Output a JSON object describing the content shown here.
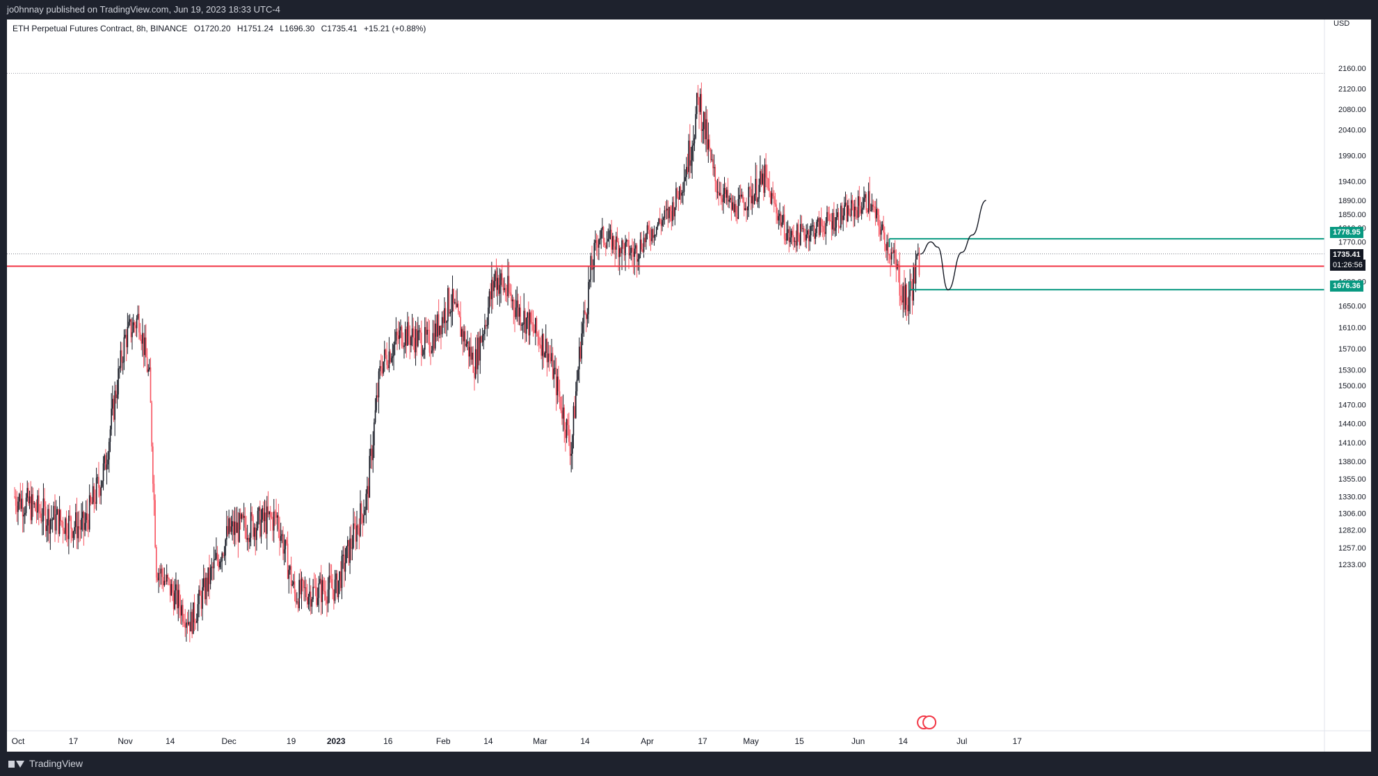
{
  "header": {
    "published": "jo0hnnay published on TradingView.com, Jun 19, 2023 18:33 UTC-4"
  },
  "symbol": {
    "name": "ETH Perpetual Futures Contract, 8h, BINANCE",
    "open": "O1720.20",
    "high": "H1751.24",
    "low": "L1696.30",
    "close": "C1735.41",
    "change": "+15.21 (+0.88%)"
  },
  "axis": {
    "currency": "USD",
    "price_ticks": [
      "2160.00",
      "2120.00",
      "2080.00",
      "2040.00",
      "1990.00",
      "1940.00",
      "1890.00",
      "1850.00",
      "1810.00",
      "1770.00",
      "1690.00",
      "1650.00",
      "1610.00",
      "1570.00",
      "1530.00",
      "1500.00",
      "1470.00",
      "1440.00",
      "1410.00",
      "1380.00",
      "1355.00",
      "1330.00",
      "1306.00",
      "1282.00",
      "1257.00",
      "1233.00"
    ],
    "time_ticks": [
      "Oct",
      "17",
      "Nov",
      "14",
      "Dec",
      "19",
      "2023",
      "16",
      "Feb",
      "14",
      "Mar",
      "14",
      "Apr",
      "17",
      "May",
      "15",
      "Jun",
      "14",
      "Jul",
      "17"
    ]
  },
  "labels": {
    "box_top": "1778.95",
    "current_price": "1735.41",
    "countdown": "01:26:56",
    "box_bottom": "1676.36"
  },
  "footer": {
    "brand": "TradingView"
  },
  "colors": {
    "up": "#131722",
    "down": "#f7525f",
    "red_line": "#f23645",
    "box": "#089981",
    "current": "#131722"
  },
  "chart_data": {
    "type": "candlestick",
    "symbol": "ETH Perpetual Futures Contract, 8h, BINANCE",
    "timeframe": "8h",
    "key_levels": {
      "horizontal_support": 1715,
      "box_top": 1778.95,
      "box_bottom": 1676.36,
      "current": 1735.41,
      "dotted_high": 2150
    },
    "anchors": [
      {
        "date": "Sep 30",
        "price": 1330
      },
      {
        "date": "Oct 10",
        "price": 1300
      },
      {
        "date": "Oct 20",
        "price": 1285
      },
      {
        "date": "Oct 26",
        "price": 1370
      },
      {
        "date": "Nov 1",
        "price": 1590
      },
      {
        "date": "Nov 5",
        "price": 1630
      },
      {
        "date": "Nov 8",
        "price": 1510
      },
      {
        "date": "Nov 10",
        "price": 1230
      },
      {
        "date": "Nov 20",
        "price": 1150
      },
      {
        "date": "Dec 1",
        "price": 1280
      },
      {
        "date": "Dec 15",
        "price": 1300
      },
      {
        "date": "Dec 20",
        "price": 1190
      },
      {
        "date": "Jan 1",
        "price": 1200
      },
      {
        "date": "Jan 10",
        "price": 1330
      },
      {
        "date": "Jan 14",
        "price": 1540
      },
      {
        "date": "Jan 20",
        "price": 1600
      },
      {
        "date": "Jan 28",
        "price": 1580
      },
      {
        "date": "Feb 3",
        "price": 1660
      },
      {
        "date": "Feb 10",
        "price": 1540
      },
      {
        "date": "Feb 16",
        "price": 1700
      },
      {
        "date": "Feb 22",
        "price": 1650
      },
      {
        "date": "Mar 3",
        "price": 1570
      },
      {
        "date": "Mar 10",
        "price": 1400
      },
      {
        "date": "Mar 13",
        "price": 1600
      },
      {
        "date": "Mar 18",
        "price": 1790
      },
      {
        "date": "Mar 28",
        "price": 1740
      },
      {
        "date": "Apr 3",
        "price": 1810
      },
      {
        "date": "Apr 8",
        "price": 1860
      },
      {
        "date": "Apr 13",
        "price": 1990
      },
      {
        "date": "Apr 16",
        "price": 2100
      },
      {
        "date": "Apr 20",
        "price": 1950
      },
      {
        "date": "Apr 26",
        "price": 1860
      },
      {
        "date": "May 5",
        "price": 1940
      },
      {
        "date": "May 12",
        "price": 1780
      },
      {
        "date": "May 20",
        "price": 1810
      },
      {
        "date": "May 30",
        "price": 1860
      },
      {
        "date": "Jun 4",
        "price": 1890
      },
      {
        "date": "Jun 10",
        "price": 1750
      },
      {
        "date": "Jun 13",
        "price": 1690
      },
      {
        "date": "Jun 15",
        "price": 1650
      },
      {
        "date": "Jun 19",
        "price": 1735
      }
    ],
    "projection": [
      {
        "date": "Jun 19",
        "price": 1735
      },
      {
        "date": "Jun 22",
        "price": 1770
      },
      {
        "date": "Jun 24",
        "price": 1755
      },
      {
        "date": "Jun 27",
        "price": 1676
      },
      {
        "date": "Jul 1",
        "price": 1740
      },
      {
        "date": "Jul 4",
        "price": 1790
      },
      {
        "date": "Jul 8",
        "price": 1890
      }
    ]
  }
}
